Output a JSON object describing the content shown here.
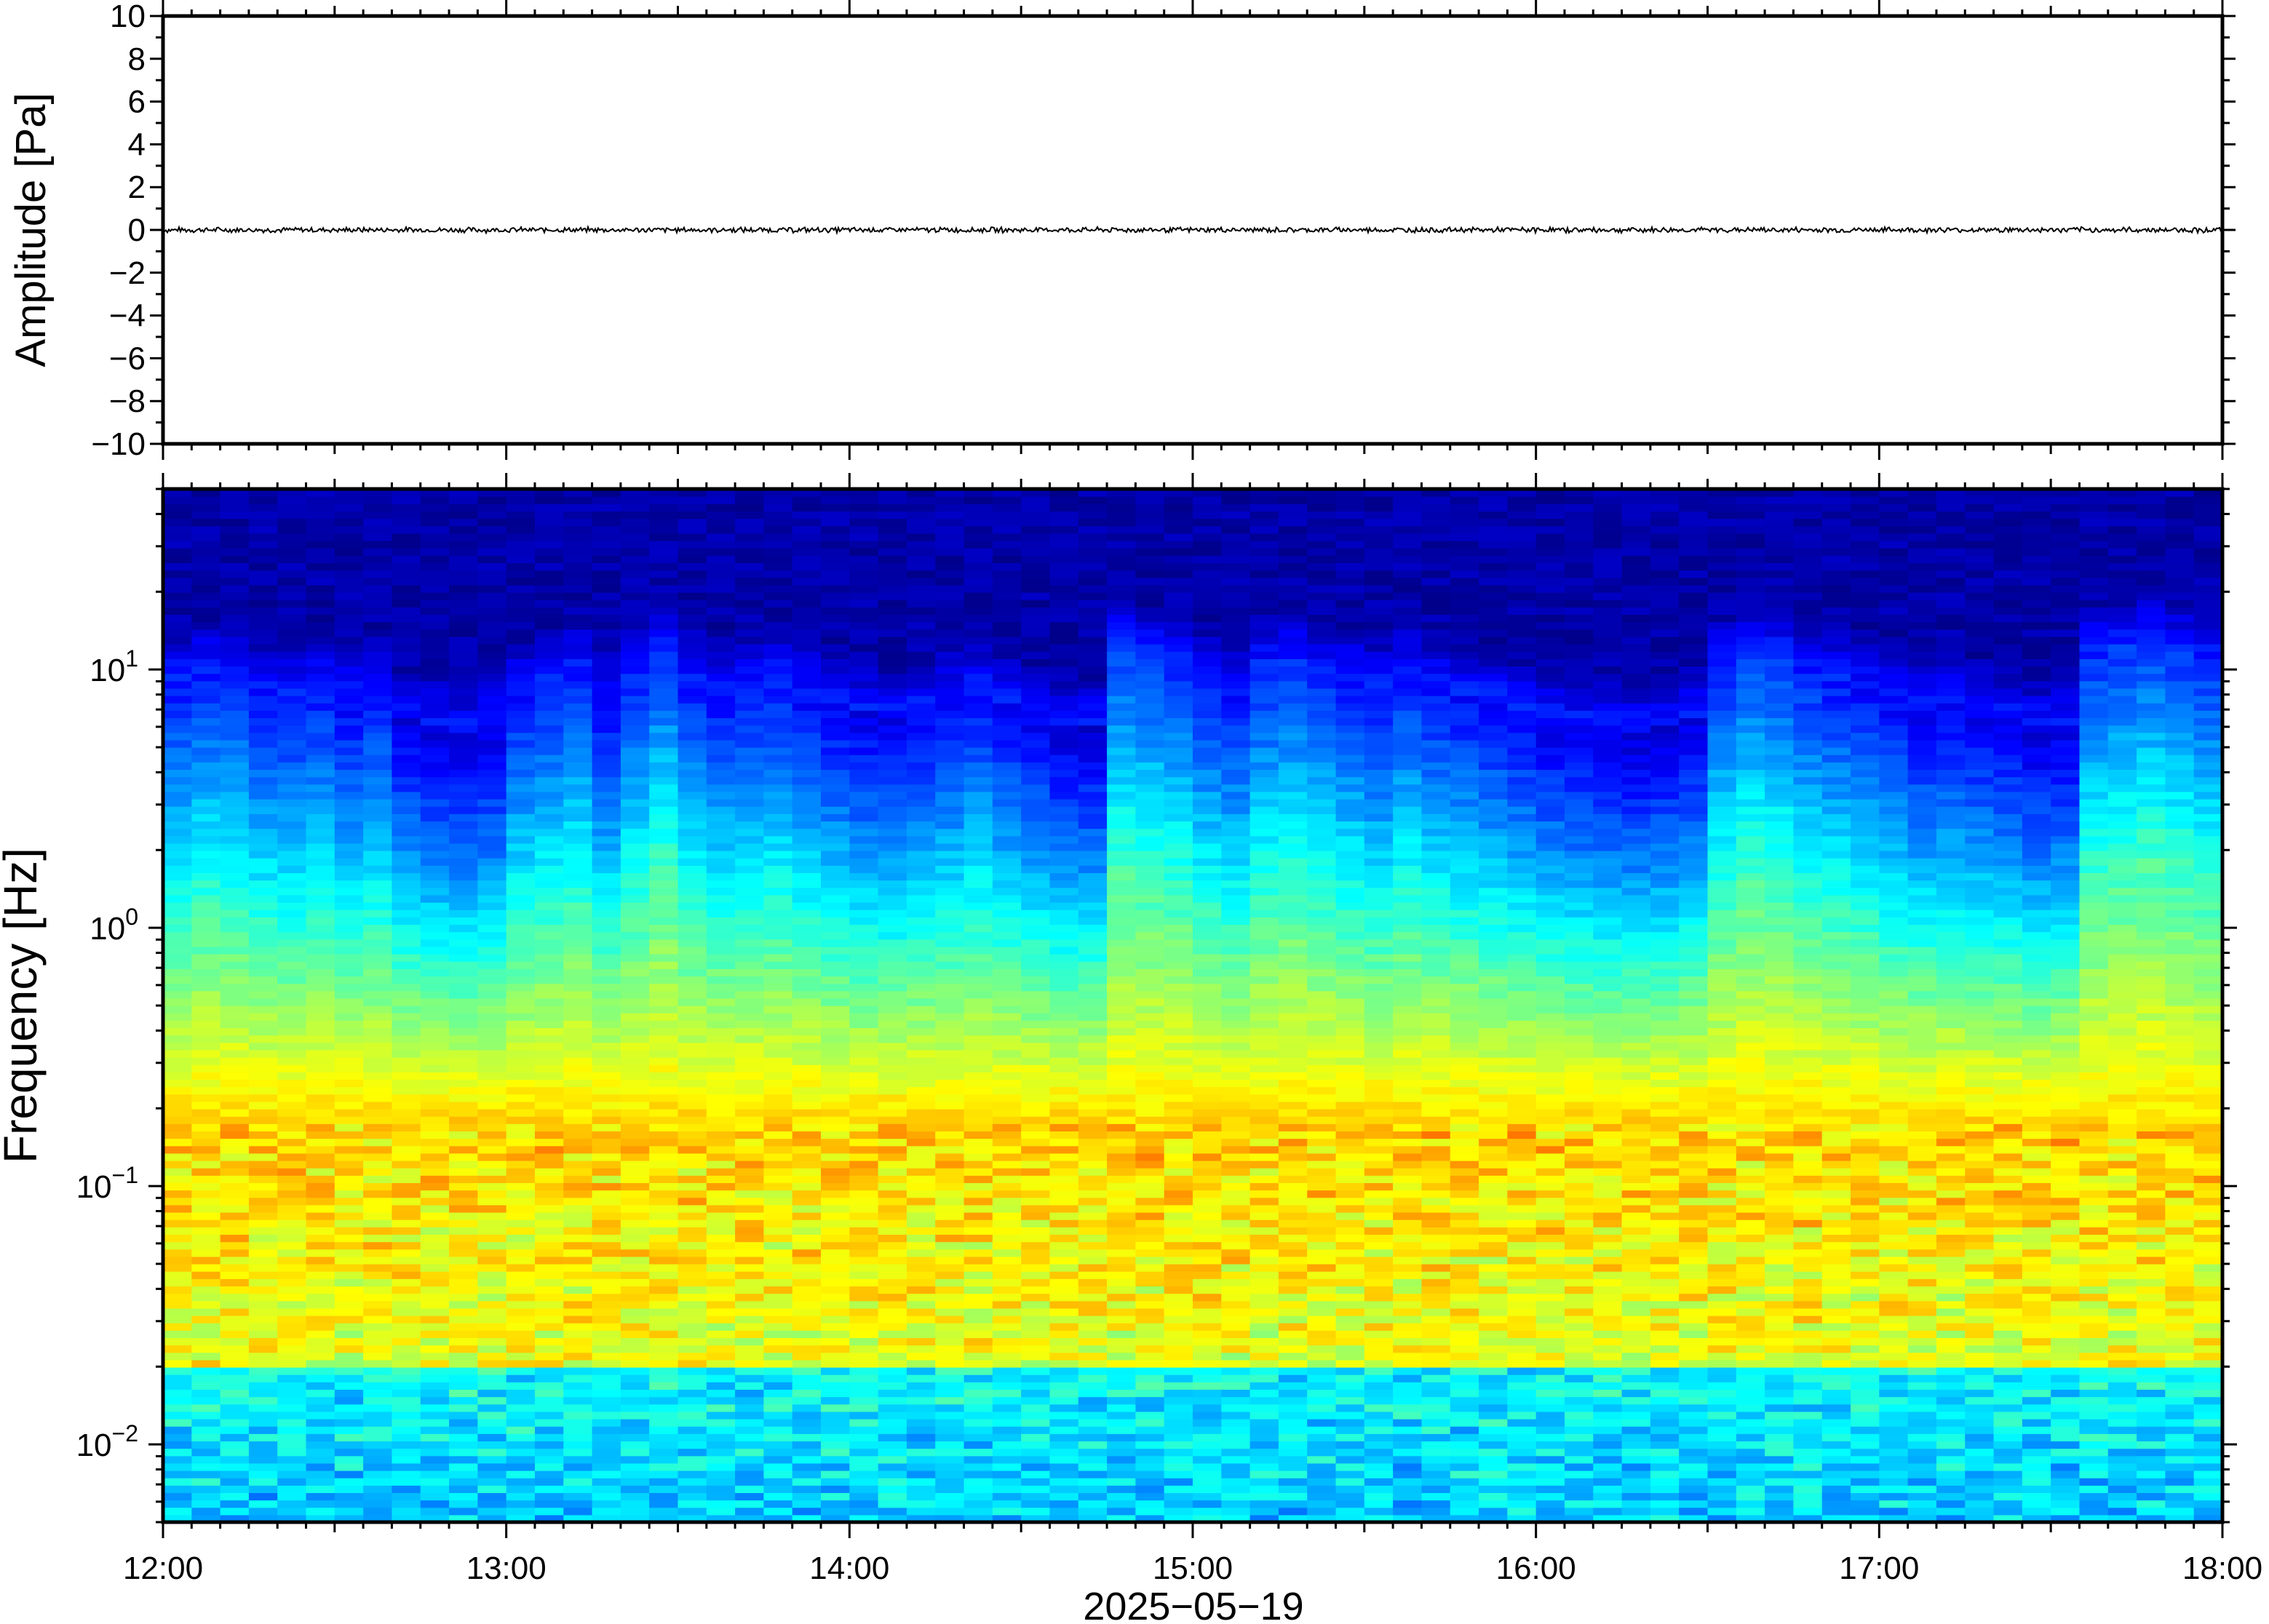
{
  "chart_data": [
    {
      "type": "line",
      "panel": "waveform",
      "ylabel": "Amplitude [Pa]",
      "ylim": [
        -10,
        10
      ],
      "yticks": [
        "10",
        "8",
        "6",
        "4",
        "2",
        "0",
        "−2",
        "−4",
        "−6",
        "−8",
        "−10"
      ],
      "ytick_values": [
        10,
        8,
        6,
        4,
        2,
        0,
        -2,
        -4,
        -6,
        -8,
        -10
      ],
      "x_range": [
        "12:00",
        "18:00"
      ],
      "series_level": 0,
      "noise_amplitude": 0.12,
      "line_color": "#000000"
    },
    {
      "type": "heatmap",
      "panel": "spectrogram",
      "ylabel": "Frequency [Hz]",
      "yscale": "log",
      "ylim": [
        0.005,
        50
      ],
      "yticks": [
        {
          "base": "10",
          "exp": "1",
          "value": 10
        },
        {
          "base": "10",
          "exp": "0",
          "value": 1
        },
        {
          "base": "10",
          "exp": "−1",
          "value": 0.1
        },
        {
          "base": "10",
          "exp": "−2",
          "value": 0.01
        }
      ],
      "xlabel": "2025−05−19",
      "xticks": [
        "12:00",
        "13:00",
        "14:00",
        "15:00",
        "16:00",
        "17:00",
        "18:00"
      ],
      "colormap": "jet",
      "colors": {
        "background_high_freq": "#0d0870",
        "microseism_peak": "#f5b35a",
        "low_band": "#35b0f0"
      },
      "dominant_band_hz": 0.18,
      "time_window_columns": 72,
      "column_energy_profile": [
        0.55,
        0.6,
        0.58,
        0.5,
        0.48,
        0.52,
        0.45,
        0.5,
        0.35,
        0.3,
        0.28,
        0.32,
        0.5,
        0.55,
        0.6,
        0.45,
        0.6,
        0.7,
        0.55,
        0.5,
        0.52,
        0.55,
        0.48,
        0.42,
        0.38,
        0.35,
        0.4,
        0.45,
        0.5,
        0.42,
        0.38,
        0.3,
        0.3,
        0.72,
        0.68,
        0.65,
        0.55,
        0.5,
        0.62,
        0.65,
        0.6,
        0.55,
        0.5,
        0.58,
        0.52,
        0.48,
        0.45,
        0.4,
        0.35,
        0.32,
        0.3,
        0.28,
        0.3,
        0.35,
        0.62,
        0.7,
        0.68,
        0.6,
        0.55,
        0.5,
        0.45,
        0.4,
        0.42,
        0.38,
        0.35,
        0.3,
        0.32,
        0.68,
        0.72,
        0.75,
        0.7,
        0.65
      ]
    }
  ]
}
